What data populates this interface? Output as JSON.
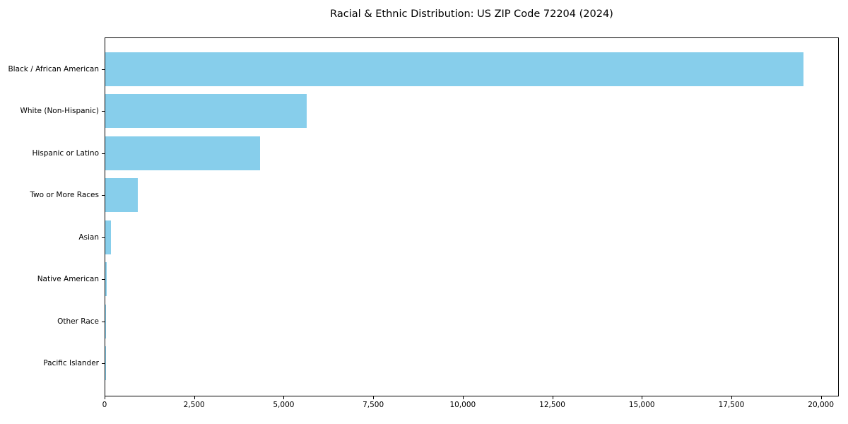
{
  "title": "Racial & Ethnic Distribution: US ZIP Code 72204 (2024)",
  "chart_data": {
    "type": "bar",
    "orientation": "horizontal",
    "title": "Racial & Ethnic Distribution: US ZIP Code 72204 (2024)",
    "xlabel": "",
    "ylabel": "",
    "categories": [
      "Black / African American",
      "White (Non-Hispanic)",
      "Hispanic or Latino",
      "Two or More Races",
      "Asian",
      "Native American",
      "Other Race",
      "Pacific Islander"
    ],
    "values": [
      19500,
      5620,
      4330,
      900,
      150,
      40,
      10,
      5
    ],
    "xlim": [
      0,
      20500
    ],
    "xticks": [
      0,
      2500,
      5000,
      7500,
      10000,
      12500,
      15000,
      17500,
      20000
    ],
    "xtick_labels": [
      "0",
      "2,500",
      "5,000",
      "7,500",
      "10,000",
      "12,500",
      "15,000",
      "17,500",
      "20,000"
    ],
    "bar_color": "#87CEEB",
    "background_color": "#ffffff",
    "spine_color": "#000000",
    "grid": false,
    "legend": null
  }
}
